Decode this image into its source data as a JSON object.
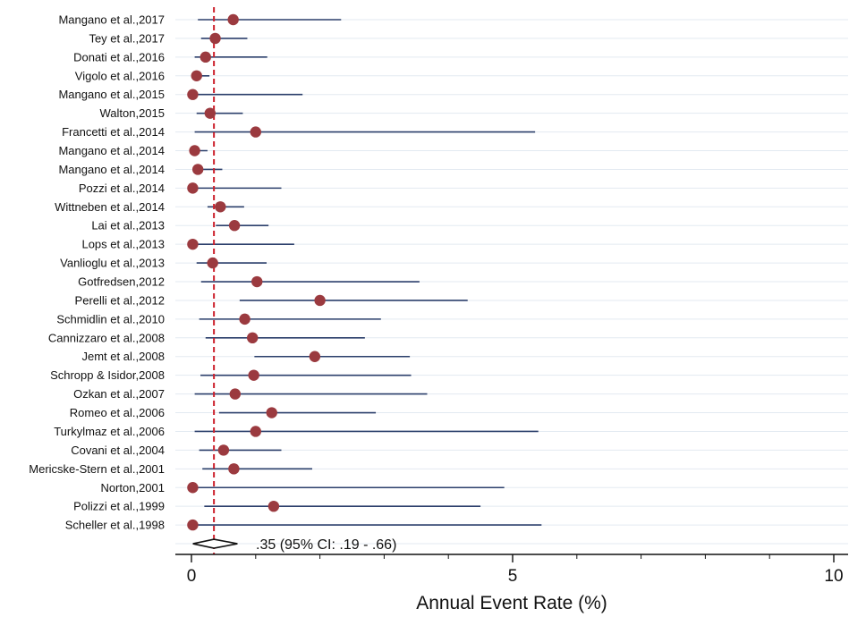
{
  "chart_data": {
    "type": "forest",
    "xlabel": "Annual Event Rate (%)",
    "xlim": [
      0,
      10
    ],
    "x_ticks": [
      "0",
      "5",
      "10"
    ],
    "reference_line": 0.35,
    "pooled": {
      "estimate": 0.35,
      "lower": 0.19,
      "upper": 0.66,
      "label": ".35  (95% CI: .19 - .66)"
    },
    "studies": [
      {
        "label": "Mangano et al.,2017",
        "estimate": 0.65,
        "lower": 0.1,
        "upper": 2.33
      },
      {
        "label": "Tey et al.,2017",
        "estimate": 0.37,
        "lower": 0.15,
        "upper": 0.87
      },
      {
        "label": "Donati et al.,2016",
        "estimate": 0.22,
        "lower": 0.05,
        "upper": 1.18
      },
      {
        "label": "Vigolo et al.,2016",
        "estimate": 0.08,
        "lower": 0.02,
        "upper": 0.28
      },
      {
        "label": "Mangano et al.,2015",
        "estimate": 0.02,
        "lower": 0.0,
        "upper": 1.73
      },
      {
        "label": "Walton,2015",
        "estimate": 0.29,
        "lower": 0.08,
        "upper": 0.8
      },
      {
        "label": "Francetti et al.,2014",
        "estimate": 1.0,
        "lower": 0.05,
        "upper": 5.35
      },
      {
        "label": "Mangano et al.,2014",
        "estimate": 0.05,
        "lower": 0.0,
        "upper": 0.25
      },
      {
        "label": "Mangano et al.,2014",
        "estimate": 0.1,
        "lower": 0.02,
        "upper": 0.48
      },
      {
        "label": "Pozzi et al.,2014",
        "estimate": 0.02,
        "lower": 0.0,
        "upper": 1.4
      },
      {
        "label": "Wittneben et al.,2014",
        "estimate": 0.45,
        "lower": 0.25,
        "upper": 0.82
      },
      {
        "label": "Lai et al.,2013",
        "estimate": 0.67,
        "lower": 0.38,
        "upper": 1.2
      },
      {
        "label": "Lops et al.,2013",
        "estimate": 0.02,
        "lower": 0.0,
        "upper": 1.6
      },
      {
        "label": "Vanlioglu et al.,2013",
        "estimate": 0.33,
        "lower": 0.08,
        "upper": 1.17
      },
      {
        "label": "Gotfredsen,2012",
        "estimate": 1.02,
        "lower": 0.15,
        "upper": 3.55
      },
      {
        "label": "Perelli et al.,2012",
        "estimate": 2.0,
        "lower": 0.75,
        "upper": 4.3
      },
      {
        "label": "Schmidlin et al.,2010",
        "estimate": 0.83,
        "lower": 0.12,
        "upper": 2.95
      },
      {
        "label": "Cannizzaro et al.,2008",
        "estimate": 0.95,
        "lower": 0.22,
        "upper": 2.7
      },
      {
        "label": "Jemt et al.,2008",
        "estimate": 1.92,
        "lower": 0.98,
        "upper": 3.4
      },
      {
        "label": "Schropp & Isidor,2008",
        "estimate": 0.97,
        "lower": 0.14,
        "upper": 3.42
      },
      {
        "label": "Ozkan et al.,2007",
        "estimate": 0.68,
        "lower": 0.05,
        "upper": 3.67
      },
      {
        "label": "Romeo et al.,2006",
        "estimate": 1.25,
        "lower": 0.43,
        "upper": 2.87
      },
      {
        "label": "Turkylmaz et al.,2006",
        "estimate": 1.0,
        "lower": 0.05,
        "upper": 5.4
      },
      {
        "label": "Covani et al.,2004",
        "estimate": 0.5,
        "lower": 0.12,
        "upper": 1.4
      },
      {
        "label": "Mericske-Stern et al.,2001",
        "estimate": 0.66,
        "lower": 0.17,
        "upper": 1.88
      },
      {
        "label": "Norton,2001",
        "estimate": 0.02,
        "lower": 0.0,
        "upper": 4.87
      },
      {
        "label": "Polizzi et al.,1999",
        "estimate": 1.28,
        "lower": 0.2,
        "upper": 4.5
      },
      {
        "label": "Scheller et al.,1998",
        "estimate": 0.02,
        "lower": 0.0,
        "upper": 5.45
      }
    ],
    "colors": {
      "ci_line": "#2b3f6b",
      "marker": "#9b3a3f",
      "ref_line": "#cc1f2b",
      "grid": "#e3eaf1"
    }
  }
}
